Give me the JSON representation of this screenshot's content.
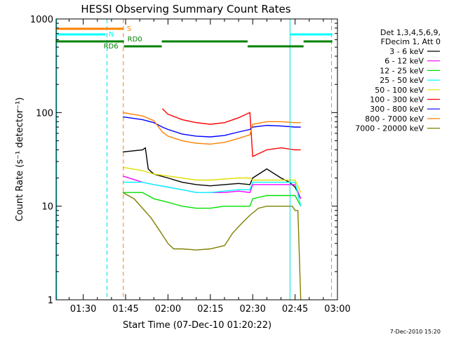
{
  "chart_data": {
    "type": "line",
    "title": "HESSI Observing Summary Count Rates",
    "xlabel": "Start Time (07-Dec-10 01:20:22)",
    "ylabel": "Count Rate (s⁻¹ detector⁻¹)",
    "ylog": true,
    "ylim": [
      1,
      1000
    ],
    "xlim_minutes": [
      80.4,
      180
    ],
    "x_ticks": [
      {
        "t": 90,
        "label": "01:30"
      },
      {
        "t": 105,
        "label": "01:45"
      },
      {
        "t": 120,
        "label": "02:00"
      },
      {
        "t": 135,
        "label": "02:15"
      },
      {
        "t": 150,
        "label": "02:30"
      },
      {
        "t": 165,
        "label": "02:45"
      },
      {
        "t": 180,
        "label": "03:00"
      }
    ],
    "y_ticks": [
      {
        "v": 1,
        "label": "1"
      },
      {
        "v": 10,
        "label": "10"
      },
      {
        "v": 100,
        "label": "100"
      },
      {
        "v": 1000,
        "label": "1000"
      }
    ],
    "legend_header": [
      "Det 1,3,4,5,6,9,",
      "FDecim 1, Att 0"
    ],
    "series": [
      {
        "name": "3 - 6 keV",
        "color": "#000000",
        "points": [
          [
            104,
            38
          ],
          [
            111,
            40
          ],
          [
            112,
            42
          ],
          [
            113,
            25
          ],
          [
            115,
            22
          ],
          [
            120,
            20
          ],
          [
            125,
            18
          ],
          [
            130,
            17
          ],
          [
            135,
            16.5
          ],
          [
            140,
            17
          ],
          [
            145,
            17.5
          ],
          [
            149,
            17
          ],
          [
            150,
            20
          ],
          [
            155,
            25
          ],
          [
            160,
            20
          ],
          [
            163,
            18
          ],
          [
            165,
            16
          ],
          [
            167,
            12
          ]
        ]
      },
      {
        "name": "6 - 12 keV",
        "color": "#ff00ff",
        "points": [
          [
            104,
            21
          ],
          [
            111,
            18
          ],
          [
            115,
            17
          ],
          [
            120,
            16
          ],
          [
            125,
            15
          ],
          [
            130,
            14
          ],
          [
            135,
            14
          ],
          [
            140,
            14
          ],
          [
            145,
            14.5
          ],
          [
            149,
            14
          ],
          [
            150,
            17
          ],
          [
            155,
            17
          ],
          [
            160,
            17
          ],
          [
            165,
            17
          ],
          [
            167,
            12
          ]
        ]
      },
      {
        "name": "12 - 25 keV",
        "color": "#00e000",
        "points": [
          [
            104,
            14
          ],
          [
            111,
            14
          ],
          [
            115,
            12
          ],
          [
            120,
            11
          ],
          [
            125,
            10
          ],
          [
            130,
            9.5
          ],
          [
            135,
            9.5
          ],
          [
            140,
            10
          ],
          [
            145,
            10
          ],
          [
            149,
            10
          ],
          [
            150,
            12
          ],
          [
            155,
            13
          ],
          [
            160,
            13
          ],
          [
            165,
            13
          ],
          [
            167,
            10
          ]
        ]
      },
      {
        "name": "25 - 50 keV",
        "color": "#00ffff",
        "points": [
          [
            104,
            18
          ],
          [
            111,
            18
          ],
          [
            115,
            17
          ],
          [
            120,
            16
          ],
          [
            125,
            15
          ],
          [
            130,
            14
          ],
          [
            135,
            14
          ],
          [
            140,
            14.5
          ],
          [
            145,
            15
          ],
          [
            149,
            15
          ],
          [
            150,
            18
          ],
          [
            155,
            18
          ],
          [
            160,
            18
          ],
          [
            165,
            18
          ],
          [
            167,
            10
          ]
        ]
      },
      {
        "name": "50 - 100 keV",
        "color": "#e0e000",
        "points": [
          [
            104,
            26
          ],
          [
            111,
            24
          ],
          [
            115,
            22
          ],
          [
            120,
            21
          ],
          [
            125,
            20
          ],
          [
            130,
            19
          ],
          [
            135,
            19
          ],
          [
            140,
            19.5
          ],
          [
            145,
            20
          ],
          [
            149,
            20
          ],
          [
            150,
            19
          ],
          [
            155,
            19
          ],
          [
            160,
            19
          ],
          [
            165,
            19
          ],
          [
            167,
            14
          ]
        ]
      },
      {
        "name": "100 - 300 keV",
        "color": "#ff0000",
        "points": [
          [
            118,
            110
          ],
          [
            120,
            96
          ],
          [
            125,
            84
          ],
          [
            130,
            78
          ],
          [
            135,
            75
          ],
          [
            140,
            78
          ],
          [
            145,
            88
          ],
          [
            149,
            100
          ],
          [
            150,
            34
          ],
          [
            155,
            40
          ],
          [
            160,
            42
          ],
          [
            165,
            40
          ],
          [
            167,
            40
          ]
        ]
      },
      {
        "name": "300 - 800 keV",
        "color": "#0000ff",
        "points": [
          [
            104,
            90
          ],
          [
            111,
            84
          ],
          [
            115,
            78
          ],
          [
            118,
            70
          ],
          [
            120,
            66
          ],
          [
            125,
            59
          ],
          [
            130,
            56
          ],
          [
            135,
            55
          ],
          [
            140,
            57
          ],
          [
            145,
            62
          ],
          [
            149,
            66
          ],
          [
            150,
            70
          ],
          [
            155,
            73
          ],
          [
            160,
            72
          ],
          [
            165,
            70
          ],
          [
            167,
            70
          ]
        ]
      },
      {
        "name": "800 - 7000 keV",
        "color": "#ff8000",
        "points": [
          [
            104,
            100
          ],
          [
            111,
            92
          ],
          [
            115,
            82
          ],
          [
            118,
            62
          ],
          [
            120,
            56
          ],
          [
            125,
            50
          ],
          [
            130,
            47
          ],
          [
            135,
            46
          ],
          [
            140,
            48
          ],
          [
            145,
            53
          ],
          [
            149,
            58
          ],
          [
            150,
            75
          ],
          [
            155,
            80
          ],
          [
            160,
            80
          ],
          [
            165,
            78
          ],
          [
            167,
            78
          ]
        ]
      },
      {
        "name": "7000 - 20000 keV",
        "color": "#808000",
        "points": [
          [
            104,
            14
          ],
          [
            108,
            12
          ],
          [
            111,
            9.5
          ],
          [
            114,
            7.5
          ],
          [
            117,
            5.5
          ],
          [
            120,
            4
          ],
          [
            122,
            3.5
          ],
          [
            125,
            3.5
          ],
          [
            130,
            3.4
          ],
          [
            135,
            3.5
          ],
          [
            140,
            3.8
          ],
          [
            143,
            5.2
          ],
          [
            146,
            6.5
          ],
          [
            149,
            8
          ],
          [
            152,
            9.5
          ],
          [
            155,
            10
          ],
          [
            160,
            10
          ],
          [
            164,
            10
          ],
          [
            165,
            9
          ],
          [
            166,
            9
          ],
          [
            167,
            1
          ]
        ]
      }
    ],
    "vertical_lines": [
      {
        "t": 80.6,
        "color": "#00e0e0",
        "dashed": false
      },
      {
        "t": 98.4,
        "color": "#00e0e0",
        "dashed": true
      },
      {
        "t": 104.2,
        "color": "#ff8000",
        "dashed": true
      },
      {
        "t": 163.2,
        "color": "#00e0e0",
        "dashed": false
      },
      {
        "t": 177.9,
        "color": "#00e0e0",
        "dashed": true
      }
    ],
    "indicator_bars": [
      {
        "label": "S",
        "color": "#ff8000",
        "segments": [
          [
            80.4,
            104.2
          ]
        ]
      },
      {
        "label": "N",
        "color": "#00ffff",
        "segments": [
          [
            80.4,
            97.8
          ],
          [
            163.2,
            178.2
          ]
        ]
      },
      {
        "label": "RD6",
        "color": "#008000",
        "segments": [
          [
            80.4,
            104.4
          ]
        ]
      },
      {
        "label": "RD0",
        "color": "#008000",
        "segments": [
          [
            117.8,
            148.2
          ],
          [
            168,
            178.2
          ]
        ]
      },
      {
        "label": "",
        "color": "#008000",
        "segments": [
          [
            104.4,
            117.8
          ],
          [
            148.2,
            168
          ]
        ]
      }
    ],
    "date_stamp": "7-Dec-2010 15:20"
  }
}
